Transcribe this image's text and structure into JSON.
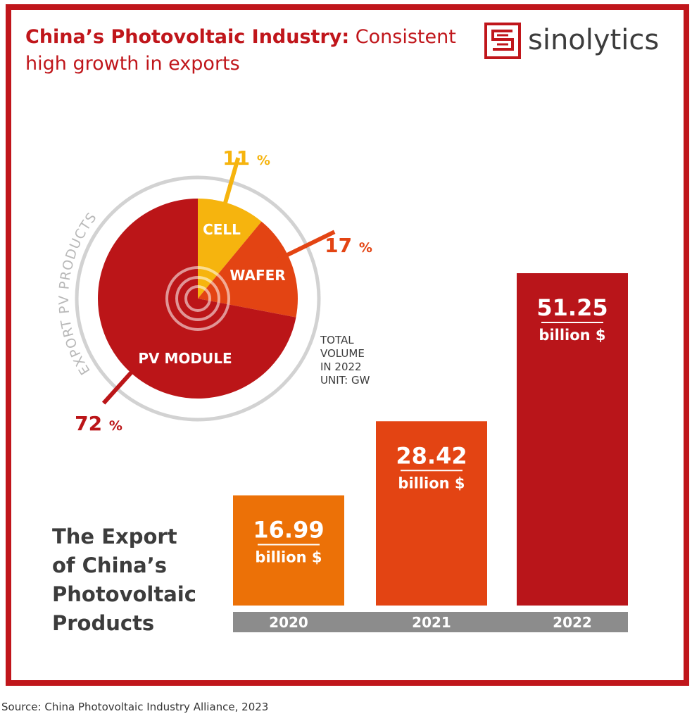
{
  "header": {
    "title_bold": "China’s Photovoltaic Industry:",
    "title_rest": " Consistent high growth in exports",
    "brand": "sinolytics"
  },
  "source": "Source: China Photovoltaic Industry Alliance, 2023",
  "colors": {
    "frame": "#c0161b",
    "cell": "#f6b40e",
    "wafer": "#e34413",
    "pv_module": "#bb1518",
    "bar_2020": "#ec7107",
    "bar_2021": "#e34413",
    "bar_2022": "#b9151a",
    "axis_band": "#8c8c8c",
    "ring": "#d2d2d2"
  },
  "chart_data": [
    {
      "type": "pie",
      "arc_label": "EXPORT PV PRODUCTS",
      "note_lines": [
        "TOTAL",
        "VOLUME",
        "IN 2022",
        "UNIT: GW"
      ],
      "slices": [
        {
          "name": "CELL",
          "value": 11,
          "value_label": "11 %"
        },
        {
          "name": "WAFER",
          "value": 17,
          "value_label": "17 %"
        },
        {
          "name": "PV MODULE",
          "value": 72,
          "value_label": "72 %"
        }
      ]
    },
    {
      "type": "bar",
      "title_lines": [
        "The Export",
        "of China’s",
        "Photovoltaic",
        "Products"
      ],
      "categories": [
        "2020",
        "2021",
        "2022"
      ],
      "values": [
        16.99,
        28.42,
        51.25
      ],
      "value_labels": [
        "16.99",
        "28.42",
        "51.25"
      ],
      "unit_label": "billion $"
    }
  ]
}
